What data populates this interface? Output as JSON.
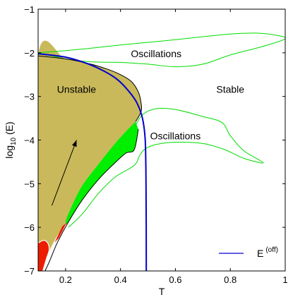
{
  "chart_data": {
    "type": "area",
    "xlabel": "T",
    "ylabel_base": "log",
    "ylabel_sub": "10",
    "ylabel_arg": "(E)",
    "xlim": [
      0.1,
      1.0
    ],
    "ylim": [
      -7,
      -1
    ],
    "xticks": [
      0.2,
      0.4,
      0.6,
      0.8,
      1
    ],
    "xtick_labels": [
      "0.2",
      "0.4",
      "0.6",
      "0.8",
      "1"
    ],
    "yticks": [
      -1,
      -2,
      -3,
      -4,
      -5,
      -6,
      -7
    ],
    "ytick_labels": [
      "−1",
      "−2",
      "−3",
      "−4",
      "−5",
      "−6",
      "−7"
    ],
    "grid": false,
    "legend": {
      "placement": "bottom-right",
      "entries": [
        {
          "label": "E",
          "superscript": "(off)",
          "color": "#0000cc"
        }
      ]
    },
    "annotations": [
      {
        "text": "Unstable",
        "x": 0.24,
        "y": -2.92
      },
      {
        "text": "Stable",
        "x": 0.8,
        "y": -2.92
      },
      {
        "text": "Oscillations",
        "x": 0.53,
        "y": -2.1
      },
      {
        "text": "Oscillations",
        "x": 0.6,
        "y": -3.98
      }
    ],
    "arrow": {
      "from": [
        0.15,
        -5.5
      ],
      "to": [
        0.24,
        -4.0
      ],
      "color": "#000000"
    },
    "colors": {
      "unstable_fill": "#c9b95a",
      "oscillation_fill": "#00ee00",
      "oscillation_line": "#00dd00",
      "red_fill": "#ee1c00",
      "boundary_line": "#000000",
      "curve_line": "#0000cc",
      "white_line": "#ffffff"
    },
    "regions": {
      "unstable": [
        [
          0.1,
          -7
        ],
        [
          0.1,
          -2.07
        ],
        [
          0.2,
          -2.14
        ],
        [
          0.28,
          -2.24
        ],
        [
          0.35,
          -2.37
        ],
        [
          0.4,
          -2.5
        ],
        [
          0.44,
          -2.66
        ],
        [
          0.465,
          -2.9
        ],
        [
          0.475,
          -3.15
        ],
        [
          0.475,
          -3.35
        ],
        [
          0.455,
          -3.58
        ],
        [
          0.42,
          -3.8
        ],
        [
          0.38,
          -4.08
        ],
        [
          0.32,
          -4.55
        ],
        [
          0.26,
          -5.05
        ],
        [
          0.22,
          -5.55
        ],
        [
          0.2,
          -5.88
        ],
        [
          0.16,
          -6.3
        ],
        [
          0.13,
          -6.7
        ],
        [
          0.115,
          -7
        ]
      ],
      "green_band": [
        [
          0.455,
          -3.58
        ],
        [
          0.42,
          -3.8
        ],
        [
          0.38,
          -4.08
        ],
        [
          0.32,
          -4.55
        ],
        [
          0.26,
          -5.05
        ],
        [
          0.22,
          -5.55
        ],
        [
          0.2,
          -5.88
        ],
        [
          0.21,
          -5.88
        ],
        [
          0.26,
          -5.38
        ],
        [
          0.32,
          -4.9
        ],
        [
          0.38,
          -4.52
        ],
        [
          0.42,
          -4.3
        ],
        [
          0.45,
          -4.22
        ],
        [
          0.465,
          -3.75
        ]
      ],
      "red_upper": [
        [
          0.188,
          -5.98
        ],
        [
          0.205,
          -5.88
        ],
        [
          0.175,
          -6.25
        ],
        [
          0.16,
          -6.35
        ]
      ],
      "red_left": [
        [
          0.1,
          -6.36
        ],
        [
          0.12,
          -6.3
        ],
        [
          0.135,
          -6.36
        ],
        [
          0.14,
          -6.52
        ],
        [
          0.13,
          -6.72
        ],
        [
          0.117,
          -7
        ],
        [
          0.1,
          -7
        ]
      ]
    },
    "series": [
      {
        "role": "E_off_curve",
        "points": [
          [
            0.1,
            -2.02
          ],
          [
            0.2,
            -2.1
          ],
          [
            0.28,
            -2.25
          ],
          [
            0.34,
            -2.42
          ],
          [
            0.39,
            -2.62
          ],
          [
            0.43,
            -2.88
          ],
          [
            0.46,
            -3.15
          ],
          [
            0.48,
            -3.5
          ],
          [
            0.49,
            -4.0
          ],
          [
            0.493,
            -5.0
          ],
          [
            0.494,
            -7
          ]
        ]
      },
      {
        "role": "boundary_outer",
        "points": [
          [
            0.1,
            -2.07
          ],
          [
            0.2,
            -2.14
          ],
          [
            0.28,
            -2.24
          ],
          [
            0.35,
            -2.37
          ],
          [
            0.4,
            -2.5
          ],
          [
            0.44,
            -2.66
          ],
          [
            0.465,
            -2.9
          ],
          [
            0.475,
            -3.15
          ],
          [
            0.475,
            -3.35
          ],
          [
            0.455,
            -3.58
          ]
        ]
      },
      {
        "role": "boundary_lower",
        "points": [
          [
            0.465,
            -3.75
          ],
          [
            0.45,
            -4.22
          ],
          [
            0.42,
            -4.3
          ],
          [
            0.38,
            -4.52
          ],
          [
            0.32,
            -4.9
          ],
          [
            0.26,
            -5.38
          ],
          [
            0.21,
            -5.88
          ],
          [
            0.17,
            -6.35
          ],
          [
            0.14,
            -6.8
          ],
          [
            0.125,
            -7
          ]
        ]
      },
      {
        "role": "osc_upper_loop",
        "points": [
          [
            0.1,
            -2.0
          ],
          [
            0.2,
            -1.95
          ],
          [
            0.3,
            -1.89
          ],
          [
            0.4,
            -1.82
          ],
          [
            0.5,
            -1.76
          ],
          [
            0.6,
            -1.7
          ],
          [
            0.7,
            -1.63
          ],
          [
            0.8,
            -1.57
          ],
          [
            0.9,
            -1.55
          ],
          [
            0.97,
            -1.6
          ],
          [
            1.0,
            -1.68
          ],
          [
            0.92,
            -1.85
          ],
          [
            0.8,
            -2.05
          ],
          [
            0.7,
            -2.26
          ],
          [
            0.6,
            -2.32
          ],
          [
            0.5,
            -2.26
          ],
          [
            0.4,
            -2.22
          ],
          [
            0.3,
            -2.21
          ],
          [
            0.2,
            -2.14
          ],
          [
            0.13,
            -2.04
          ],
          [
            0.1,
            -2.0
          ]
        ]
      },
      {
        "role": "osc_lower_loop",
        "points": [
          [
            0.45,
            -3.72
          ],
          [
            0.48,
            -3.42
          ],
          [
            0.53,
            -3.28
          ],
          [
            0.6,
            -3.3
          ],
          [
            0.7,
            -3.46
          ],
          [
            0.77,
            -3.6
          ],
          [
            0.8,
            -3.9
          ],
          [
            0.85,
            -4.25
          ],
          [
            0.92,
            -4.52
          ],
          [
            0.85,
            -4.42
          ],
          [
            0.78,
            -4.22
          ],
          [
            0.7,
            -4.08
          ],
          [
            0.6,
            -4.05
          ],
          [
            0.53,
            -4.1
          ],
          [
            0.49,
            -4.2
          ],
          [
            0.47,
            -4.35
          ],
          [
            0.45,
            -4.58
          ],
          [
            0.38,
            -4.85
          ],
          [
            0.32,
            -5.22
          ],
          [
            0.26,
            -5.7
          ],
          [
            0.21,
            -6.0
          ]
        ]
      },
      {
        "role": "white_boundary",
        "points": [
          [
            0.1,
            -6.36
          ],
          [
            0.12,
            -6.3
          ],
          [
            0.135,
            -6.36
          ],
          [
            0.14,
            -6.52
          ],
          [
            0.13,
            -6.72
          ],
          [
            0.117,
            -7
          ]
        ]
      }
    ]
  }
}
